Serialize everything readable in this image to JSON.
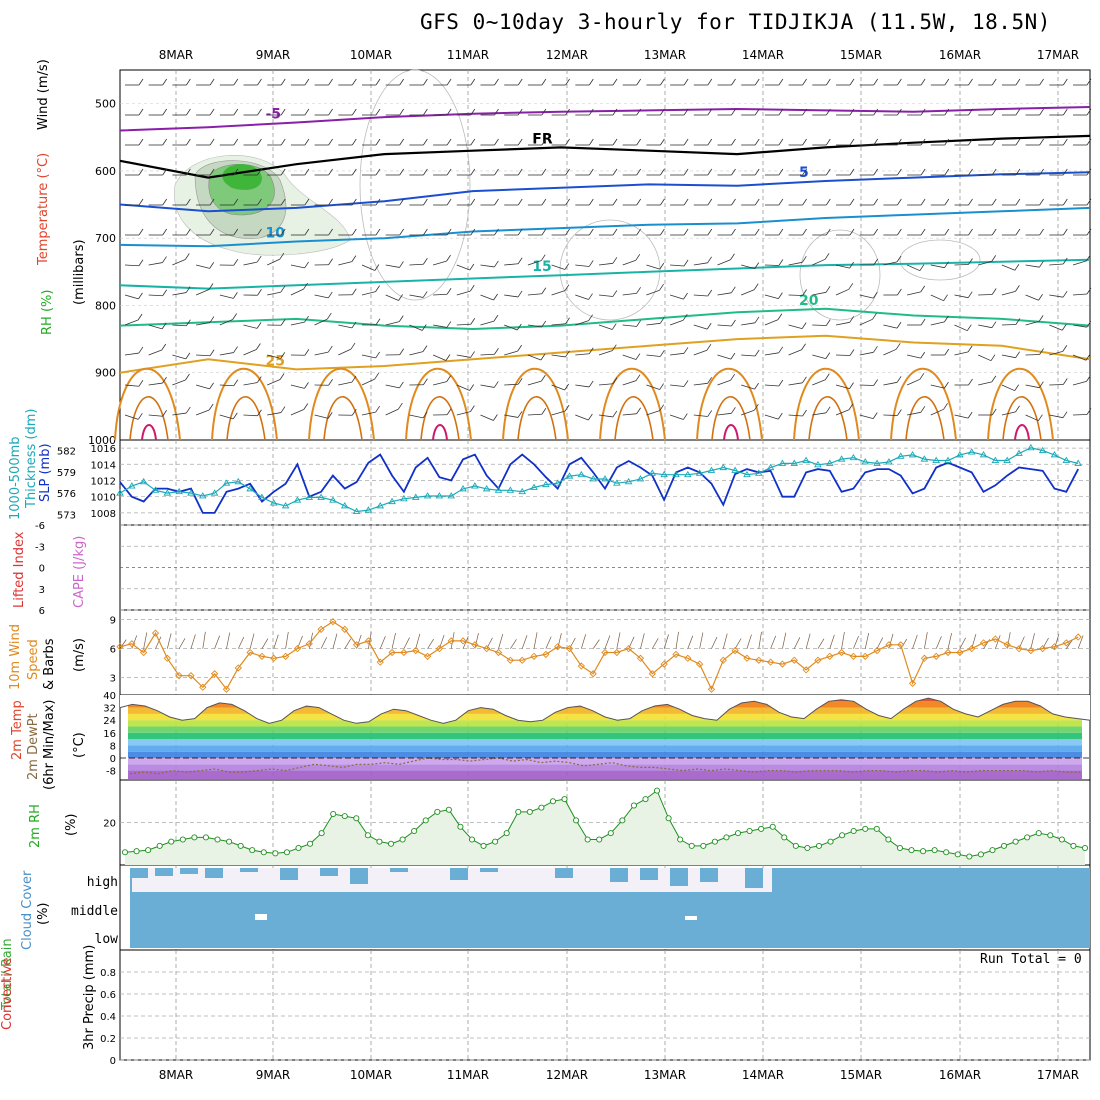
{
  "title": "GFS 0~10day 3-hourly for TIDJIKJA (11.5W, 18.5N)",
  "dates": [
    "8MAR",
    "9MAR",
    "10MAR",
    "11MAR",
    "12MAR",
    "13MAR",
    "14MAR",
    "15MAR",
    "16MAR",
    "17MAR"
  ],
  "run_total": "Run Total = 0",
  "colors": {
    "temp_label": "#e0442c",
    "rh_label": "#22aa22",
    "thickness": "#1aaab8",
    "slp": "#1030c8",
    "wind10m": "#e08a1e",
    "cape": "#cc66cc",
    "cloud": "#6aaed6",
    "lifted": "#dd3333"
  },
  "chart_data": [
    {
      "type": "contour",
      "name": "upper-air",
      "ylabel_parts": [
        {
          "text": "Wind (m/s)",
          "color": "#000000"
        },
        {
          "text": "Temperature (°C)",
          "color": "#e0442c"
        },
        {
          "text": "RH (%)",
          "color": "#22aa22"
        },
        {
          "text": "(millibars)",
          "color": "#000000"
        }
      ],
      "yticks": [
        500,
        600,
        700,
        800,
        900,
        1000
      ],
      "ylim": [
        450,
        1000
      ],
      "contour_labels": [
        "-5",
        "-5",
        "FR",
        "FR",
        "5",
        "10",
        "10",
        "15",
        "15",
        "20",
        "20",
        "25"
      ],
      "isotherms": [
        {
          "label": "-5",
          "color": "#8a1fa8",
          "levels": [
            540,
            535,
            528,
            520,
            515,
            512,
            510,
            508,
            510,
            512,
            508,
            505
          ]
        },
        {
          "label": "FR",
          "color": "#000000",
          "levels": [
            585,
            610,
            590,
            575,
            570,
            565,
            570,
            575,
            565,
            558,
            552,
            548
          ]
        },
        {
          "label": "5",
          "color": "#1a4fd0",
          "levels": [
            650,
            660,
            655,
            645,
            630,
            625,
            620,
            622,
            615,
            610,
            605,
            602
          ]
        },
        {
          "label": "10",
          "color": "#1a8fd0",
          "levels": [
            710,
            712,
            705,
            700,
            690,
            685,
            680,
            678,
            670,
            665,
            660,
            655
          ]
        },
        {
          "label": "15",
          "color": "#19b3a6",
          "levels": [
            770,
            775,
            770,
            765,
            760,
            755,
            750,
            745,
            740,
            738,
            735,
            732
          ]
        },
        {
          "label": "20",
          "color": "#1fbb88",
          "levels": [
            830,
            825,
            820,
            830,
            835,
            830,
            820,
            810,
            805,
            815,
            820,
            830
          ]
        },
        {
          "label": "25",
          "color": "#e0a020",
          "levels": [
            900,
            880,
            895,
            890,
            880,
            870,
            860,
            850,
            845,
            855,
            860,
            880
          ]
        }
      ]
    },
    {
      "type": "line",
      "name": "thickness-slp",
      "ylabel_left": "1000-500mb Thickness (dm)",
      "ylabel_right": "SLP (mb)",
      "yticks_left": [
        573,
        576,
        579,
        582
      ],
      "yticks_right": [
        1008,
        1010,
        1012,
        1014,
        1016
      ],
      "series": [
        {
          "name": "SLP (mb)",
          "color": "#1030c8",
          "values": [
            1011.8,
            1010,
            1009.4,
            1011,
            1011,
            1010.6,
            1011,
            1008,
            1008,
            1010.6,
            1011,
            1011.6,
            1009.4,
            1010.6,
            1011.6,
            1014,
            1010,
            1010.6,
            1012.6,
            1011,
            1011.8,
            1014.2,
            1015.2,
            1012.6,
            1010.6,
            1013.6,
            1014.8,
            1012.4,
            1012,
            1014.6,
            1015.2,
            1012.6,
            1011,
            1014,
            1015.2,
            1014,
            1012.4,
            1011,
            1014,
            1014.8,
            1013,
            1011,
            1013.6,
            1014.4,
            1013.6,
            1012.6,
            1009.6,
            1013,
            1013.6,
            1013,
            1011.6,
            1009,
            1012.8,
            1013.4,
            1013,
            1013.2,
            1010,
            1010,
            1013,
            1013.4,
            1013.2,
            1010.6,
            1011,
            1013,
            1013.4,
            1013.4,
            1012.6,
            1010.4,
            1011,
            1013.6,
            1014.2,
            1013.6,
            1013,
            1010.6,
            1011.4,
            1012.6,
            1013.6,
            1013.4,
            1013.2,
            1011,
            1010.6,
            1013.4
          ]
        },
        {
          "name": "1000-500mb Thickness (dm)",
          "color": "#1aaab8",
          "values": [
            576,
            577,
            577.6,
            576.4,
            576,
            576.2,
            576,
            575.6,
            576,
            577.4,
            577.6,
            576.6,
            575.4,
            574.6,
            574.2,
            575,
            575.4,
            575.4,
            575,
            574.2,
            573.4,
            573.6,
            574.2,
            574.8,
            575.2,
            575.4,
            575.6,
            575.6,
            575.6,
            576.6,
            577,
            576.6,
            576.4,
            576.4,
            576.2,
            576.8,
            577.2,
            577.4,
            578.4,
            578.6,
            578,
            578,
            577.4,
            577.6,
            578,
            578.8,
            578.6,
            578.6,
            578.6,
            578.8,
            579.2,
            579.6,
            579.2,
            578.6,
            578.8,
            579.6,
            580.2,
            580.2,
            580.6,
            580,
            580.2,
            580.8,
            581,
            580.4,
            580.2,
            580.4,
            581.2,
            581.4,
            580.8,
            580.6,
            580.6,
            581.4,
            581.8,
            581.4,
            580.6,
            580.6,
            581.6,
            582.4,
            582,
            581.4,
            580.6,
            580.2
          ]
        }
      ]
    },
    {
      "type": "line",
      "name": "lifted-cape",
      "ylabel_parts": [
        {
          "text": "Lifted Index",
          "color": "#dd3333"
        },
        {
          "text": "CAPE (J/kg)",
          "color": "#cc66cc"
        }
      ],
      "yticks": [
        "-6",
        "-3",
        "0",
        "3",
        "6"
      ],
      "ylim": [
        -6,
        6
      ]
    },
    {
      "type": "line",
      "name": "wind10m",
      "ylabel": "10m Wind Speed & Barbs",
      "ylabel_unit": "(m/s)",
      "yticks": [
        3,
        6,
        9
      ],
      "ylim": [
        1.2,
        10
      ],
      "series": [
        {
          "name": "10m Wind Speed",
          "color": "#e08a1e",
          "values": [
            6.2,
            6.5,
            5.6,
            7.6,
            5,
            3.2,
            3.2,
            2,
            3.4,
            1.8,
            4,
            5.6,
            5.2,
            5,
            5.2,
            6,
            6.5,
            8,
            8.8,
            8,
            6.4,
            6.8,
            4.6,
            5.6,
            5.6,
            5.8,
            5.2,
            6,
            6.8,
            6.8,
            6.4,
            6,
            5.6,
            4.8,
            4.8,
            5.2,
            5.4,
            6.2,
            6,
            4.2,
            3.4,
            5.6,
            5.6,
            6,
            5,
            3.4,
            4.4,
            5.4,
            5,
            4.4,
            1.8,
            4.8,
            5.8,
            5,
            4.8,
            4.6,
            4.4,
            4.8,
            3.8,
            4.8,
            5.2,
            5.6,
            5.2,
            5.2,
            5.8,
            6.4,
            6.4,
            2.4,
            5,
            5.2,
            5.6,
            5.6,
            6,
            6.6,
            7,
            6.4,
            6,
            5.8,
            6,
            6.2,
            6.6,
            7.2
          ]
        }
      ]
    },
    {
      "type": "area",
      "name": "temp-dewpt",
      "ylabel": "2m Temp 2m DewPt (6hr Min/Max)",
      "ylabel_unit": "(°C)",
      "yticks": [
        40,
        32,
        24,
        16,
        8,
        0,
        -8
      ],
      "ylim": [
        -14,
        40
      ],
      "series": [
        {
          "name": "2m Temp",
          "values": [
            32,
            34,
            33,
            30,
            26,
            24,
            25,
            32,
            35,
            34,
            30,
            25,
            22,
            24,
            30,
            33,
            32,
            28,
            24,
            22,
            23,
            28,
            31,
            30,
            27,
            24,
            22,
            24,
            30,
            32,
            31,
            27,
            24,
            23,
            24,
            29,
            32,
            33,
            30,
            26,
            24,
            25,
            30,
            33,
            34,
            31,
            27,
            25,
            24,
            31,
            35,
            36,
            34,
            29,
            26,
            25,
            31,
            36,
            37,
            36,
            31,
            27,
            25,
            31,
            36,
            38,
            36,
            31,
            28,
            26,
            30,
            34,
            36,
            36,
            33,
            28,
            26,
            25,
            24
          ]
        },
        {
          "name": "2m DewPt",
          "values": [
            -10,
            -9,
            -10,
            -8,
            -9,
            -8,
            -7,
            -9,
            -9,
            -8,
            -7,
            -8,
            -6,
            -4,
            -5,
            -6,
            -4,
            -4,
            -3,
            -4,
            -2,
            0,
            -1,
            -1,
            -2,
            -1,
            0,
            -2,
            -1,
            -3,
            -2,
            -3,
            -5,
            -4,
            -3,
            -5,
            -6,
            -6,
            -7,
            -8,
            -7,
            -8,
            -7,
            -8,
            -9,
            -8,
            -8,
            -9,
            -8,
            -8,
            -8,
            -9,
            -8,
            -8,
            -9,
            -8,
            -8,
            -9,
            -8,
            -9,
            -8,
            -8,
            -8,
            -8,
            -9,
            -8,
            -9,
            -9
          ]
        }
      ]
    },
    {
      "type": "area",
      "name": "rh2m",
      "ylabel": "2m RH",
      "ylabel_unit": "(%)",
      "yticks": [
        20
      ],
      "ylim": [
        0,
        40
      ],
      "series": [
        {
          "name": "2m RH",
          "color": "#1f8f1f",
          "values": [
            6,
            6.5,
            7,
            9,
            11,
            12,
            13,
            13,
            12,
            11,
            9,
            7,
            6,
            5.5,
            6,
            8,
            10,
            15,
            24,
            23,
            22,
            14,
            11,
            10,
            12,
            16,
            21,
            25,
            26,
            18,
            12,
            9,
            11,
            15,
            25,
            25,
            27,
            30,
            31,
            21,
            12,
            12,
            15,
            21,
            28,
            31,
            35,
            22,
            12,
            9,
            9,
            11,
            13,
            15,
            16,
            17,
            18,
            13,
            9,
            8,
            9,
            11,
            14,
            16,
            17,
            17,
            12,
            8,
            7,
            6.5,
            7,
            6,
            5,
            4,
            5,
            7,
            9,
            11,
            13,
            15,
            14,
            12,
            9,
            8
          ]
        }
      ]
    },
    {
      "type": "area",
      "name": "cloud-cover",
      "ylabel": "Cloud Cover",
      "ylabel_unit": "(%)",
      "yticks": [
        "high",
        "middle",
        "low"
      ],
      "ylim": [
        0,
        3
      ]
    },
    {
      "type": "bar",
      "name": "precip3hr",
      "ylabel_parts": [
        {
          "text": "Total / Rain",
          "color": "#33aa33"
        },
        {
          "text": "Convective",
          "color": "#dd3333"
        }
      ],
      "ylabel_unit": "3hr Precip (mm)",
      "yticks": [
        0,
        0.2,
        0.4,
        0.6,
        0.8
      ],
      "ylim": [
        0,
        1
      ],
      "values": []
    }
  ]
}
